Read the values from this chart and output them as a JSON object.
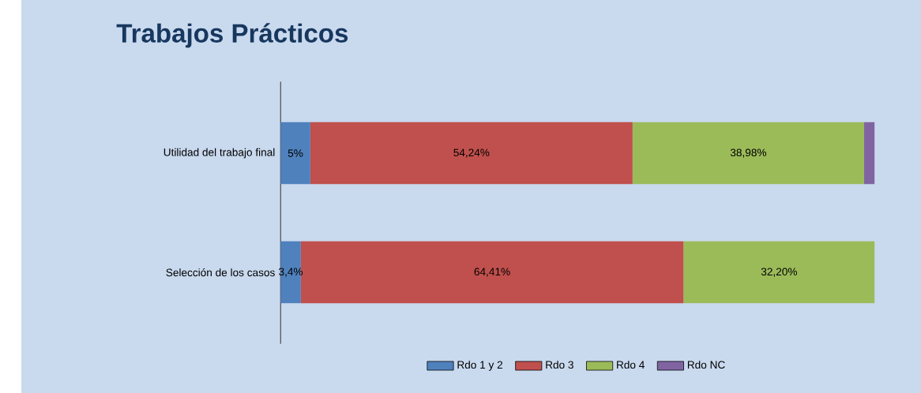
{
  "chart_data": {
    "type": "bar",
    "orientation": "horizontal",
    "stacked": true,
    "title": "Trabajos Prácticos",
    "categories": [
      "Utilidad del trabajo final",
      "Selección de los casos"
    ],
    "xlim": [
      0,
      100
    ],
    "tick_labels": "y",
    "legend": "bottom",
    "grid": false,
    "series": [
      {
        "name": "Rdo 1 y 2",
        "color": "#4f81bd",
        "values": [
          5,
          3.4
        ],
        "value_labels": [
          "5%",
          "3,4%"
        ]
      },
      {
        "name": "Rdo 3",
        "color": "#c0504d",
        "values": [
          54.24,
          64.41
        ],
        "value_labels": [
          "54,24%",
          "64,41%"
        ]
      },
      {
        "name": "Rdo 4",
        "color": "#9bbb59",
        "values": [
          38.98,
          32.2
        ],
        "value_labels": [
          "38,98%",
          "32,20%"
        ]
      },
      {
        "name": "Rdo NC",
        "color": "#8064a2",
        "values": [
          1.78,
          0
        ]
      }
    ]
  }
}
